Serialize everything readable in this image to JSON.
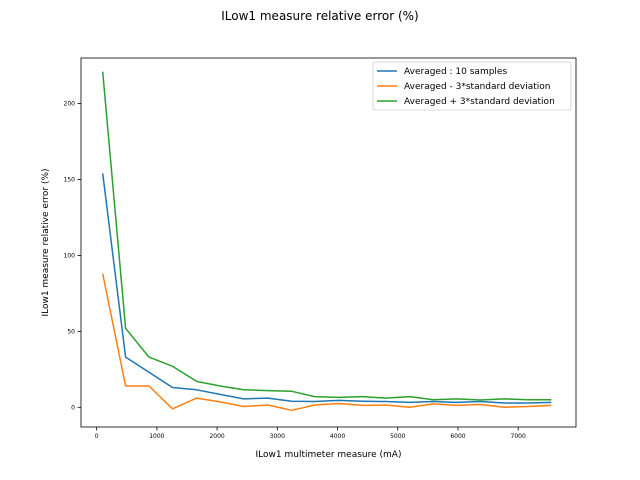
{
  "chart_data": {
    "type": "line",
    "title": "ILow1 measure relative error (%)",
    "xlabel": "ILow1 multimeter measure (mA)",
    "ylabel": "ILow1 measure relative error (%)",
    "xlim": [
      -260,
      7960
    ],
    "ylim": [
      -13,
      230
    ],
    "xticks": [
      0,
      1000,
      2000,
      3000,
      4000,
      5000,
      6000,
      7000
    ],
    "yticks": [
      0,
      50,
      100,
      150,
      200
    ],
    "grid": false,
    "legend_position": "top-right",
    "x": [
      100,
      480,
      870,
      1260,
      1660,
      2050,
      2440,
      2840,
      3240,
      3620,
      4020,
      4420,
      4800,
      5200,
      5590,
      5980,
      6370,
      6770,
      7160,
      7550
    ],
    "series": [
      {
        "name": "Averaged : 10 samples",
        "color": "#1f77b4",
        "values": [
          154,
          33,
          23,
          13,
          11.5,
          8.5,
          5.5,
          6,
          4,
          3.8,
          4.5,
          4,
          3.8,
          3.2,
          3.8,
          3.2,
          3.8,
          2.8,
          2.8,
          3.2
        ]
      },
      {
        "name": "Averaged - 3*standard deviation",
        "color": "#ff7f0e",
        "values": [
          88,
          14,
          14,
          -1,
          6,
          3.5,
          0.5,
          1.5,
          -2,
          1.5,
          2.5,
          1.2,
          1.5,
          0,
          2.2,
          1.2,
          1.8,
          0,
          0.5,
          1.2
        ]
      },
      {
        "name": "Averaged + 3*standard deviation",
        "color": "#2ca02c",
        "values": [
          221,
          52,
          33,
          27,
          17,
          14,
          11.5,
          11,
          10.5,
          7,
          6.5,
          7,
          6,
          7,
          5,
          5.5,
          4.8,
          5.5,
          5,
          5
        ]
      }
    ]
  }
}
